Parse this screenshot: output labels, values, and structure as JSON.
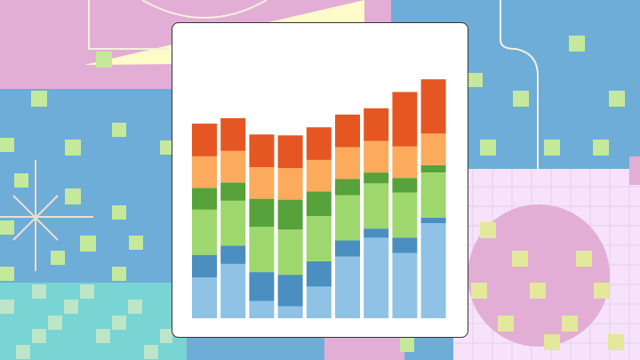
{
  "chart_data": {
    "type": "bar",
    "stacked": true,
    "categories": [
      "",
      "",
      "",
      "",
      "",
      "",
      "",
      "",
      ""
    ],
    "series": [
      {
        "color": "#8fc2e4",
        "values": [
          45,
          60,
          19,
          13,
          35,
          68,
          89,
          72,
          105
        ]
      },
      {
        "color": "#4a8fc0",
        "values": [
          25,
          20,
          32,
          35,
          28,
          18,
          10,
          17,
          6
        ]
      },
      {
        "color": "#9ed76d",
        "values": [
          50,
          50,
          50,
          50,
          50,
          50,
          50,
          50,
          50
        ]
      },
      {
        "color": "#57a23a",
        "values": [
          24,
          20,
          31,
          33,
          27,
          18,
          12,
          16,
          8
        ]
      },
      {
        "color": "#fcaa5c",
        "values": [
          35,
          35,
          35,
          35,
          35,
          35,
          35,
          35,
          35
        ]
      },
      {
        "color": "#e55623",
        "values": [
          36,
          36,
          36,
          36,
          36,
          36,
          36,
          60,
          60
        ]
      }
    ],
    "ylim": [
      0,
      275
    ],
    "grid": false,
    "legend": "none"
  },
  "colors": {
    "card_background": "#ffffff",
    "card_border": "#333333",
    "bg_pink": "#e2aed6",
    "bg_blue": "#6eadd7",
    "bg_teal": "#79d4d4",
    "bg_lavender": "#f6e3fb",
    "bg_yellow": "#fffbc8",
    "bg_green_square": "#c4e99a"
  }
}
